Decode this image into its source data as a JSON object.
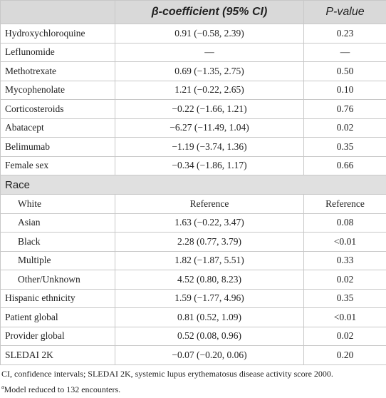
{
  "table": {
    "header": [
      "",
      "β-coefficient (95% CI)",
      "P-value"
    ],
    "rows_before": [
      [
        "Hydroxychloroquine",
        "0.91 (−0.58, 2.39)",
        "0.23"
      ],
      [
        "Leflunomide",
        "—",
        "—"
      ],
      [
        "Methotrexate",
        "0.69 (−1.35, 2.75)",
        "0.50"
      ],
      [
        "Mycophenolate",
        "1.21 (−0.22, 2.65)",
        "0.10"
      ],
      [
        "Corticosteroids",
        "−0.22 (−1.66, 1.21)",
        "0.76"
      ],
      [
        "Abatacept",
        "−6.27 (−11.49, 1.04)",
        "0.02"
      ],
      [
        "Belimumab",
        "−1.19 (−3.74, 1.36)",
        "0.35"
      ],
      [
        "Female sex",
        "−0.34 (−1.86, 1.17)",
        "0.66"
      ]
    ],
    "section": {
      "label": "Race",
      "rows": [
        [
          "White",
          "Reference",
          "Reference"
        ],
        [
          "Asian",
          "1.63 (−0.22, 3.47)",
          "0.08"
        ],
        [
          "Black",
          "2.28 (0.77, 3.79)",
          "<0.01"
        ],
        [
          "Multiple",
          "1.82 (−1.87, 5.51)",
          "0.33"
        ],
        [
          "Other/Unknown",
          "4.52 (0.80, 8.23)",
          "0.02"
        ]
      ]
    },
    "rows_after": [
      [
        "Hispanic ethnicity",
        "1.59 (−1.77, 4.96)",
        "0.35"
      ],
      [
        "Patient global",
        "0.81 (0.52, 1.09)",
        "<0.01"
      ],
      [
        "Provider global",
        "0.52 (0.08, 0.96)",
        "0.02"
      ],
      [
        "SLEDAI 2K",
        "−0.07 (−0.20, 0.06)",
        "0.20"
      ]
    ]
  },
  "footnotes": {
    "abbreviations": "CI, confidence intervals; SLEDAI 2K, systemic lupus erythematosus disease activity score 2000.",
    "note_marker": "a",
    "note": "Model reduced to 132 encounters."
  }
}
